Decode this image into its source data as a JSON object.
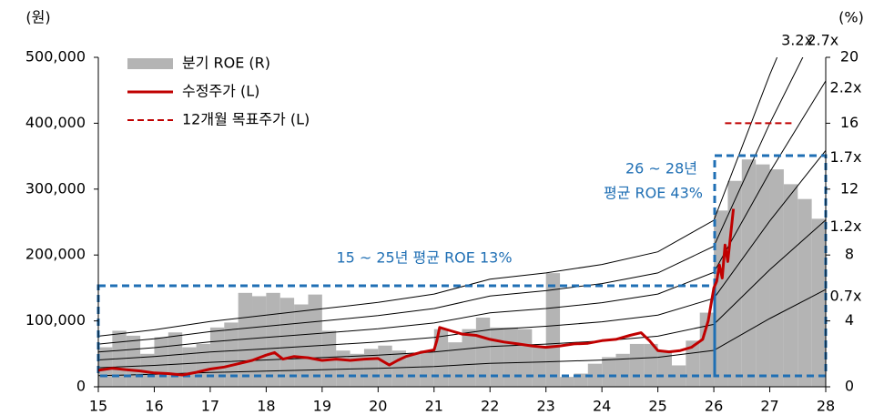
{
  "chart_data": {
    "type": "combo",
    "y_label": "(원)",
    "y2_label": "(%)",
    "xlim": [
      15,
      28
    ],
    "xticks": [
      15,
      16,
      17,
      18,
      19,
      20,
      21,
      22,
      23,
      24,
      25,
      26,
      27,
      28
    ],
    "ylim": [
      0,
      500000
    ],
    "yticks": [
      0,
      {
        "value": 100000,
        "label": "100,000"
      },
      {
        "value": 200000,
        "label": "200,000"
      },
      {
        "value": 300000,
        "label": "300,000"
      },
      {
        "value": 400000,
        "label": "400,000"
      },
      {
        "value": 500000,
        "label": "500,000"
      }
    ],
    "y2lim": [
      0,
      20
    ],
    "y2ticks": [
      0,
      4,
      8,
      12,
      16,
      20
    ],
    "series": [
      {
        "name": "분기 ROE (R)",
        "type": "bar",
        "axis": "y2",
        "color": "#b4b4b4",
        "x": [
          15,
          15.25,
          15.5,
          15.75,
          16,
          16.25,
          16.5,
          16.75,
          17,
          17.25,
          17.5,
          17.75,
          18,
          18.25,
          18.5,
          18.75,
          19,
          19.25,
          19.5,
          19.75,
          20,
          20.25,
          20.5,
          20.75,
          21,
          21.25,
          21.5,
          21.75,
          22,
          22.25,
          22.5,
          22.75,
          23,
          23.25,
          23.5,
          23.75,
          24,
          24.25,
          24.5,
          24.75,
          25,
          25.25,
          25.5,
          25.75,
          26,
          26.25,
          26.5,
          26.75,
          27,
          27.25,
          27.5,
          27.75
        ],
        "values": [
          2.4,
          3.4,
          3.1,
          2.0,
          3.0,
          3.3,
          2.4,
          2.6,
          3.6,
          3.9,
          5.7,
          5.5,
          5.7,
          5.4,
          5.0,
          5.6,
          3.4,
          2.2,
          2.0,
          2.3,
          2.5,
          2.2,
          2.0,
          2.2,
          3.5,
          2.7,
          3.5,
          4.2,
          3.6,
          3.6,
          3.5,
          2.4,
          6.9,
          0.6,
          0.8,
          1.4,
          1.8,
          2.0,
          2.6,
          2.6,
          2.2,
          1.3,
          2.8,
          4.5,
          10.7,
          12.5,
          13.8,
          13.5,
          13.2,
          12.3,
          11.4,
          10.2
        ]
      },
      {
        "name": "수정주가 (L)",
        "type": "line",
        "color": "#c00000",
        "x": [
          15,
          15.25,
          15.5,
          15.75,
          16,
          16.25,
          16.5,
          16.75,
          17,
          17.25,
          17.5,
          17.75,
          18,
          18.15,
          18.3,
          18.5,
          18.75,
          19,
          19.25,
          19.5,
          19.75,
          20,
          20.2,
          20.35,
          20.5,
          20.75,
          21,
          21.05,
          21.1,
          21.3,
          21.5,
          21.75,
          22,
          22.25,
          22.5,
          22.75,
          23,
          23.25,
          23.5,
          23.75,
          24,
          24.25,
          24.5,
          24.7,
          24.85,
          25,
          25.2,
          25.4,
          25.6,
          25.8,
          25.9,
          26,
          26.05,
          26.1,
          26.15,
          26.2,
          26.25,
          26.3,
          26.35
        ],
        "values": [
          25000,
          28000,
          26000,
          24000,
          21000,
          20000,
          18000,
          22000,
          27000,
          30000,
          35000,
          40000,
          48000,
          52000,
          42000,
          46000,
          44000,
          40000,
          42000,
          40000,
          42000,
          43000,
          33000,
          40000,
          46000,
          52000,
          56000,
          70000,
          90000,
          85000,
          80000,
          78000,
          72000,
          68000,
          65000,
          62000,
          60000,
          62000,
          65000,
          66000,
          70000,
          72000,
          78000,
          82000,
          70000,
          55000,
          53000,
          55000,
          60000,
          72000,
          100000,
          150000,
          160000,
          185000,
          165000,
          215000,
          190000,
          230000,
          270000
        ]
      },
      {
        "name": "12개월 목표주가 (L)",
        "type": "dashed",
        "color": "#c00000",
        "x": [
          26.2,
          27.45
        ],
        "values": [
          400000,
          400000
        ]
      }
    ],
    "bands": [
      {
        "name": "0.7x",
        "color": "#000000",
        "label_color": "#c00000",
        "x": [
          15,
          16,
          17,
          18,
          19,
          20,
          21,
          22,
          23,
          24,
          25,
          26,
          27,
          28
        ],
        "values": [
          16800,
          18900,
          21700,
          23800,
          25900,
          28000,
          30800,
          35700,
          37800,
          40600,
          44800,
          55300,
          103600,
          147700
        ]
      },
      {
        "name": "1.2x",
        "color": "#000000",
        "label_color": "#c00000",
        "x": [
          15,
          16,
          17,
          18,
          19,
          20,
          21,
          22,
          23,
          24,
          25,
          26,
          27,
          28
        ],
        "values": [
          28800,
          32400,
          37200,
          40800,
          44400,
          48000,
          52800,
          61200,
          64800,
          69600,
          76800,
          94800,
          177600,
          253200
        ]
      },
      {
        "name": "1.7x",
        "color": "#000000",
        "label_color": "#c00000",
        "x": [
          15,
          16,
          17,
          18,
          19,
          20,
          21,
          22,
          23,
          24,
          25,
          26,
          27,
          28
        ],
        "values": [
          40800,
          45900,
          52700,
          57800,
          62900,
          68000,
          74800,
          86700,
          91800,
          98600,
          108800,
          134300,
          251600,
          358700
        ]
      },
      {
        "name": "2.2x",
        "color": "#000000",
        "label_color": "#c00000",
        "x": [
          15,
          16,
          17,
          18,
          19,
          20,
          21,
          22,
          23,
          24,
          25,
          26,
          27,
          28
        ],
        "values": [
          52800,
          59400,
          68200,
          74800,
          81400,
          88000,
          96800,
          112200,
          118800,
          127600,
          140800,
          173800,
          325600,
          464200
        ]
      },
      {
        "name": "2.7x",
        "color": "#000000",
        "label_color": "#c00000",
        "x": [
          15,
          16,
          17,
          18,
          19,
          20,
          21,
          22,
          23,
          24,
          25,
          26,
          27,
          28
        ],
        "values": [
          64800,
          72900,
          83700,
          91800,
          99900,
          108000,
          118800,
          137700,
          145800,
          156600,
          172800,
          213300,
          399600,
          569700
        ]
      },
      {
        "name": "3.2x",
        "color": "#000000",
        "label_color": "#c00000",
        "x": [
          15,
          16,
          17,
          18,
          19,
          20,
          21,
          22,
          23,
          24,
          25,
          26,
          27,
          28
        ],
        "values": [
          76800,
          86400,
          99200,
          108800,
          118400,
          128000,
          140800,
          163200,
          172800,
          185600,
          204800,
          252800,
          473600,
          675200
        ]
      }
    ],
    "annotations": [
      "15 ~ 25년 평균 ROE 13%",
      "26 ~ 28년",
      "평균 ROE 43%"
    ]
  }
}
